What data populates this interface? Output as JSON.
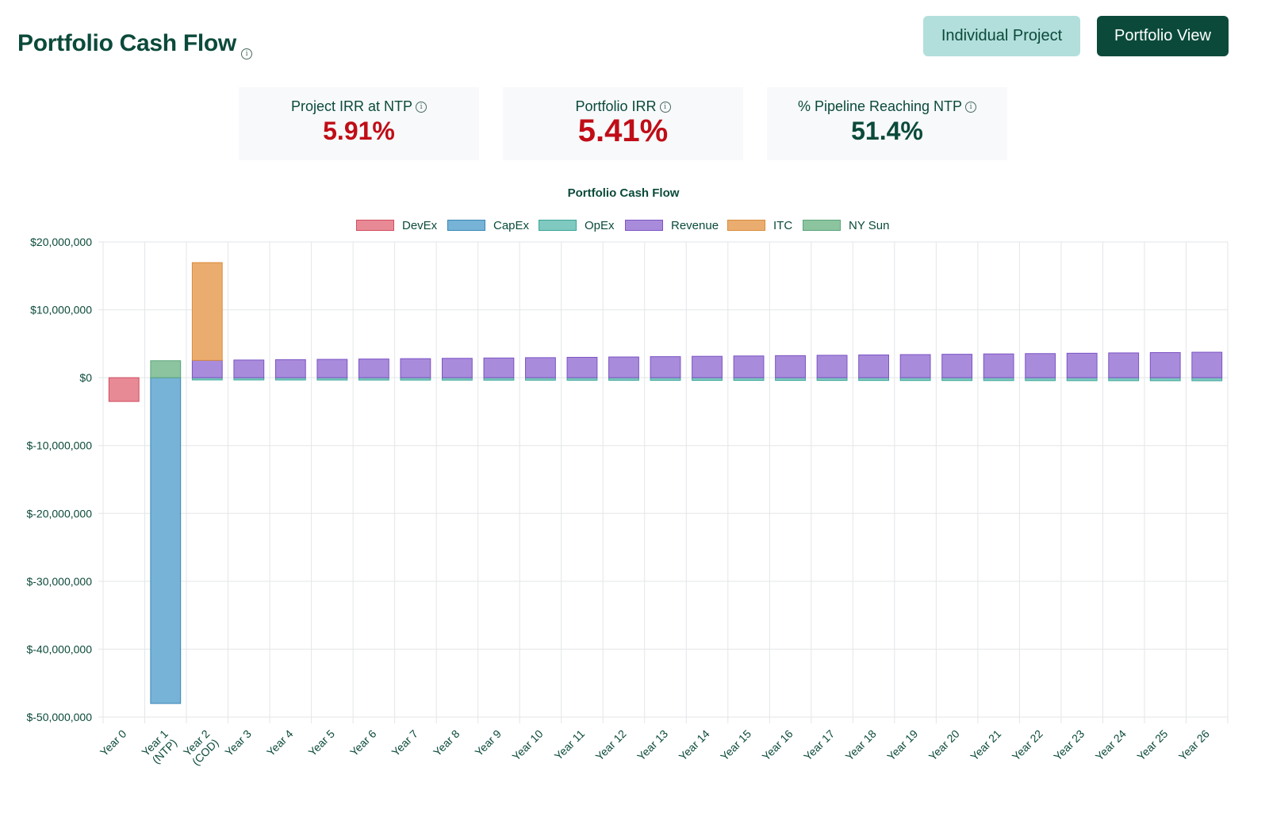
{
  "header": {
    "title": "Portfolio Cash Flow",
    "info_glyph": "i",
    "buttons": {
      "individual": "Individual Project",
      "portfolio": "Portfolio View"
    }
  },
  "kpis": [
    {
      "label": "Project IRR at NTP",
      "value": "5.91%",
      "color": "#c00d17"
    },
    {
      "label": "Portfolio IRR",
      "value": "5.41%",
      "color": "#c00d17"
    },
    {
      "label": "% Pipeline Reaching NTP",
      "value": "51.4%",
      "color": "#0b4a3a"
    }
  ],
  "chart_data": {
    "type": "bar",
    "stacked": true,
    "title": "Portfolio Cash Flow",
    "xlabel": "",
    "ylabel": "",
    "ylim": [
      -50000000,
      20000000
    ],
    "yticks": [
      20000000,
      10000000,
      0,
      -10000000,
      -20000000,
      -30000000,
      -40000000,
      -50000000
    ],
    "ytick_labels": [
      "$20,000,000",
      "$10,000,000",
      "$0",
      "$-10,000,000",
      "$-20,000,000",
      "$-30,000,000",
      "$-40,000,000",
      "$-50,000,000"
    ],
    "grid": true,
    "legend_position": "top",
    "categories": [
      [
        "Year 0"
      ],
      [
        "Year 1",
        "(NTP)"
      ],
      [
        "Year 2",
        "(COD)"
      ],
      [
        "Year 3"
      ],
      [
        "Year 4"
      ],
      [
        "Year 5"
      ],
      [
        "Year 6"
      ],
      [
        "Year 7"
      ],
      [
        "Year 8"
      ],
      [
        "Year 9"
      ],
      [
        "Year 10"
      ],
      [
        "Year 11"
      ],
      [
        "Year 12"
      ],
      [
        "Year 13"
      ],
      [
        "Year 14"
      ],
      [
        "Year 15"
      ],
      [
        "Year 16"
      ],
      [
        "Year 17"
      ],
      [
        "Year 18"
      ],
      [
        "Year 19"
      ],
      [
        "Year 20"
      ],
      [
        "Year 21"
      ],
      [
        "Year 22"
      ],
      [
        "Year 23"
      ],
      [
        "Year 24"
      ],
      [
        "Year 25"
      ],
      [
        "Year 26"
      ]
    ],
    "series": [
      {
        "name": "DevEx",
        "fill": "#e88a96",
        "stroke": "#d14b5e",
        "values": [
          -3500000,
          0,
          0,
          0,
          0,
          0,
          0,
          0,
          0,
          0,
          0,
          0,
          0,
          0,
          0,
          0,
          0,
          0,
          0,
          0,
          0,
          0,
          0,
          0,
          0,
          0,
          0
        ]
      },
      {
        "name": "CapEx",
        "fill": "#76b3d6",
        "stroke": "#3b88b5",
        "values": [
          0,
          -48000000,
          0,
          0,
          0,
          0,
          0,
          0,
          0,
          0,
          0,
          0,
          0,
          0,
          0,
          0,
          0,
          0,
          0,
          0,
          0,
          0,
          0,
          0,
          0,
          0,
          0
        ]
      },
      {
        "name": "OpEx",
        "fill": "#7fc9c0",
        "stroke": "#3aa597",
        "values": [
          0,
          0,
          -330000,
          -335000,
          -340000,
          -345000,
          -350000,
          -355000,
          -360000,
          -365000,
          -370000,
          -375000,
          -380000,
          -385000,
          -390000,
          -395000,
          -400000,
          -405000,
          -410000,
          -415000,
          -420000,
          -425000,
          -430000,
          -435000,
          -440000,
          -445000,
          -450000
        ]
      },
      {
        "name": "Revenue",
        "fill": "#a98bdb",
        "stroke": "#7b54c4",
        "values": [
          0,
          0,
          2550000,
          2600000,
          2650000,
          2700000,
          2750000,
          2800000,
          2850000,
          2900000,
          2950000,
          3000000,
          3050000,
          3100000,
          3150000,
          3200000,
          3250000,
          3300000,
          3350000,
          3400000,
          3450000,
          3500000,
          3550000,
          3600000,
          3650000,
          3700000,
          3750000
        ]
      },
      {
        "name": "ITC",
        "fill": "#ebad6f",
        "stroke": "#d88b3c",
        "values": [
          0,
          0,
          14400000,
          0,
          0,
          0,
          0,
          0,
          0,
          0,
          0,
          0,
          0,
          0,
          0,
          0,
          0,
          0,
          0,
          0,
          0,
          0,
          0,
          0,
          0,
          0,
          0
        ]
      },
      {
        "name": "NY Sun",
        "fill": "#8cc4a0",
        "stroke": "#5aa57a",
        "values": [
          0,
          2500000,
          0,
          0,
          0,
          0,
          0,
          0,
          0,
          0,
          0,
          0,
          0,
          0,
          0,
          0,
          0,
          0,
          0,
          0,
          0,
          0,
          0,
          0,
          0,
          0,
          0
        ]
      }
    ]
  }
}
